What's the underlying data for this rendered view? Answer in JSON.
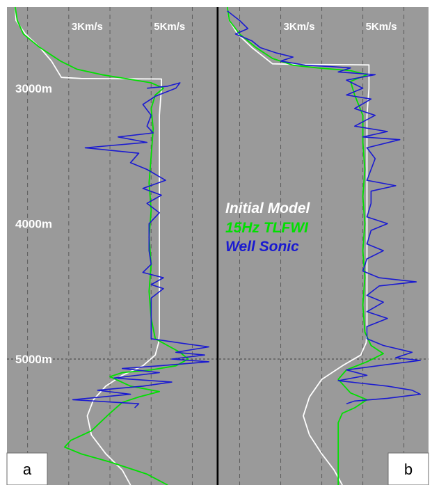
{
  "chart_data": {
    "type": "line",
    "x_axis": {
      "min": 1.5,
      "max": 6.6,
      "tick_labels": [
        "3Km/s",
        "5Km/s"
      ],
      "tick_values": [
        3,
        5
      ],
      "gridlines_km_s": [
        2,
        3,
        4,
        5,
        6
      ]
    },
    "y_axis": {
      "min": 2400,
      "max": 5930,
      "inverted": true,
      "tick_labels": [
        "3000m",
        "4000m",
        "5000m"
      ],
      "tick_values": [
        3000,
        4000,
        5000
      ]
    },
    "reference_depth_m": 5000,
    "legend": [
      {
        "label": "Initial Model",
        "color": "#ffffff"
      },
      {
        "label": "15Hz TLFWI",
        "color": "#00e000"
      },
      {
        "label": "Well Sonic",
        "color": "#1a1ad0"
      }
    ],
    "panels": [
      {
        "tag": "a",
        "series": [
          {
            "name": "Initial Model",
            "color": "#ffffff",
            "points": [
              [
                1.7,
                2400
              ],
              [
                1.72,
                2500
              ],
              [
                1.95,
                2600
              ],
              [
                2.3,
                2700
              ],
              [
                2.58,
                2800
              ],
              [
                2.82,
                2920
              ],
              [
                3.3,
                2928
              ],
              [
                4.1,
                2930
              ],
              [
                5.25,
                2932
              ],
              [
                5.25,
                3000
              ],
              [
                5.2,
                3200
              ],
              [
                5.2,
                3600
              ],
              [
                5.2,
                4000
              ],
              [
                5.2,
                4400
              ],
              [
                5.2,
                4800
              ],
              [
                5.18,
                4880
              ],
              [
                5.1,
                4970
              ],
              [
                4.8,
                5050
              ],
              [
                4.3,
                5120
              ],
              [
                3.9,
                5200
              ],
              [
                3.6,
                5300
              ],
              [
                3.45,
                5420
              ],
              [
                3.55,
                5560
              ],
              [
                3.9,
                5700
              ],
              [
                4.3,
                5820
              ],
              [
                4.5,
                5930
              ]
            ]
          },
          {
            "name": "15Hz TLFWI",
            "color": "#00e000",
            "points": [
              [
                1.7,
                2400
              ],
              [
                1.75,
                2500
              ],
              [
                1.9,
                2600
              ],
              [
                2.3,
                2700
              ],
              [
                2.8,
                2800
              ],
              [
                3.2,
                2860
              ],
              [
                3.8,
                2900
              ],
              [
                4.4,
                2930
              ],
              [
                5.0,
                2960
              ],
              [
                5.3,
                3000
              ],
              [
                5.1,
                3050
              ],
              [
                5.0,
                3150
              ],
              [
                5.05,
                3300
              ],
              [
                5.0,
                3500
              ],
              [
                4.95,
                3700
              ],
              [
                5.0,
                3900
              ],
              [
                4.95,
                4100
              ],
              [
                5.0,
                4300
              ],
              [
                4.95,
                4500
              ],
              [
                5.0,
                4700
              ],
              [
                5.1,
                4850
              ],
              [
                5.4,
                4900
              ],
              [
                5.7,
                4950
              ],
              [
                5.9,
                5000
              ],
              [
                5.6,
                5050
              ],
              [
                5.0,
                5080
              ],
              [
                4.3,
                5100
              ],
              [
                4.0,
                5130
              ],
              [
                4.5,
                5200
              ],
              [
                5.2,
                5240
              ],
              [
                4.7,
                5280
              ],
              [
                4.3,
                5320
              ],
              [
                4.0,
                5400
              ],
              [
                3.55,
                5530
              ],
              [
                3.05,
                5600
              ],
              [
                2.9,
                5650
              ],
              [
                3.3,
                5700
              ],
              [
                4.0,
                5760
              ],
              [
                4.9,
                5850
              ],
              [
                5.4,
                5930
              ]
            ]
          },
          {
            "name": "Well Sonic",
            "color": "#1a1ad0",
            "points": [
              [
                4.9,
                3000
              ],
              [
                5.4,
                2985
              ],
              [
                5.7,
                2960
              ],
              [
                5.6,
                3000
              ],
              [
                5.1,
                3060
              ],
              [
                4.8,
                3120
              ],
              [
                5.0,
                3200
              ],
              [
                4.9,
                3280
              ],
              [
                5.05,
                3330
              ],
              [
                4.2,
                3360
              ],
              [
                4.9,
                3400
              ],
              [
                3.4,
                3440
              ],
              [
                4.7,
                3480
              ],
              [
                4.5,
                3550
              ],
              [
                4.9,
                3600
              ],
              [
                5.35,
                3680
              ],
              [
                4.8,
                3740
              ],
              [
                5.25,
                3790
              ],
              [
                4.9,
                3850
              ],
              [
                5.2,
                3920
              ],
              [
                4.95,
                4000
              ],
              [
                4.95,
                4100
              ],
              [
                4.95,
                4200
              ],
              [
                5.0,
                4300
              ],
              [
                4.8,
                4360
              ],
              [
                5.3,
                4400
              ],
              [
                5.0,
                4450
              ],
              [
                5.3,
                4480
              ],
              [
                5.0,
                4550
              ],
              [
                5.0,
                4700
              ],
              [
                5.0,
                4850
              ],
              [
                5.9,
                4890
              ],
              [
                6.4,
                4910
              ],
              [
                5.6,
                4950
              ],
              [
                6.3,
                4970
              ],
              [
                5.5,
                5000
              ],
              [
                6.4,
                5020
              ],
              [
                5.2,
                5050
              ],
              [
                4.3,
                5070
              ],
              [
                5.2,
                5100
              ],
              [
                4.1,
                5140
              ],
              [
                5.5,
                5170
              ],
              [
                4.8,
                5200
              ],
              [
                3.7,
                5230
              ],
              [
                4.5,
                5260
              ],
              [
                3.1,
                5300
              ],
              [
                4.7,
                5330
              ],
              [
                4.6,
                5360
              ]
            ]
          }
        ]
      },
      {
        "tag": "b",
        "series": [
          {
            "name": "Initial Model",
            "color": "#ffffff",
            "points": [
              [
                1.7,
                2400
              ],
              [
                1.75,
                2500
              ],
              [
                1.95,
                2600
              ],
              [
                2.3,
                2700
              ],
              [
                2.8,
                2820
              ],
              [
                3.5,
                2825
              ],
              [
                4.4,
                2826
              ],
              [
                5.15,
                2828
              ],
              [
                5.15,
                3000
              ],
              [
                5.1,
                3200
              ],
              [
                5.1,
                3600
              ],
              [
                5.1,
                4000
              ],
              [
                5.1,
                4400
              ],
              [
                5.1,
                4800
              ],
              [
                5.08,
                4880
              ],
              [
                4.95,
                4970
              ],
              [
                4.5,
                5050
              ],
              [
                4.0,
                5150
              ],
              [
                3.7,
                5280
              ],
              [
                3.55,
                5420
              ],
              [
                3.7,
                5560
              ],
              [
                4.0,
                5700
              ],
              [
                4.3,
                5820
              ],
              [
                4.5,
                5930
              ]
            ]
          },
          {
            "name": "15Hz TLFWI",
            "color": "#00e000",
            "points": [
              [
                1.7,
                2400
              ],
              [
                1.75,
                2500
              ],
              [
                2.0,
                2600
              ],
              [
                2.4,
                2700
              ],
              [
                2.8,
                2780
              ],
              [
                3.3,
                2830
              ],
              [
                3.9,
                2850
              ],
              [
                4.7,
                2870
              ],
              [
                5.1,
                2900
              ],
              [
                4.7,
                2950
              ],
              [
                4.8,
                3050
              ],
              [
                5.0,
                3200
              ],
              [
                5.0,
                3400
              ],
              [
                5.05,
                3600
              ],
              [
                5.0,
                3800
              ],
              [
                5.05,
                4000
              ],
              [
                5.0,
                4200
              ],
              [
                5.05,
                4400
              ],
              [
                5.0,
                4600
              ],
              [
                5.05,
                4800
              ],
              [
                5.2,
                4900
              ],
              [
                5.5,
                4960
              ],
              [
                5.1,
                5020
              ],
              [
                4.6,
                5080
              ],
              [
                4.4,
                5150
              ],
              [
                4.7,
                5250
              ],
              [
                5.1,
                5300
              ],
              [
                4.8,
                5360
              ],
              [
                4.5,
                5400
              ],
              [
                4.4,
                5470
              ],
              [
                4.4,
                5600
              ],
              [
                4.4,
                5750
              ],
              [
                4.4,
                5930
              ]
            ]
          },
          {
            "name": "Well Sonic",
            "color": "#1a1ad0",
            "points": [
              [
                1.7,
                2430
              ],
              [
                2.0,
                2500
              ],
              [
                2.2,
                2560
              ],
              [
                1.9,
                2600
              ],
              [
                2.3,
                2650
              ],
              [
                2.5,
                2700
              ],
              [
                2.9,
                2740
              ],
              [
                3.3,
                2770
              ],
              [
                3.0,
                2800
              ],
              [
                3.6,
                2830
              ],
              [
                4.2,
                2840
              ],
              [
                4.7,
                2850
              ],
              [
                4.4,
                2880
              ],
              [
                5.3,
                2900
              ],
              [
                4.6,
                2940
              ],
              [
                5.0,
                3000
              ],
              [
                4.6,
                3050
              ],
              [
                5.2,
                3080
              ],
              [
                4.8,
                3150
              ],
              [
                5.3,
                3200
              ],
              [
                4.8,
                3280
              ],
              [
                5.6,
                3320
              ],
              [
                5.0,
                3360
              ],
              [
                5.9,
                3380
              ],
              [
                5.1,
                3440
              ],
              [
                5.3,
                3520
              ],
              [
                5.2,
                3600
              ],
              [
                5.1,
                3680
              ],
              [
                5.8,
                3720
              ],
              [
                5.2,
                3760
              ],
              [
                5.2,
                3850
              ],
              [
                5.1,
                3950
              ],
              [
                5.6,
                4000
              ],
              [
                5.2,
                4050
              ],
              [
                5.1,
                4150
              ],
              [
                5.5,
                4200
              ],
              [
                5.1,
                4260
              ],
              [
                5.0,
                4350
              ],
              [
                5.4,
                4400
              ],
              [
                6.3,
                4430
              ],
              [
                5.4,
                4460
              ],
              [
                5.1,
                4530
              ],
              [
                5.5,
                4580
              ],
              [
                5.1,
                4650
              ],
              [
                5.6,
                4700
              ],
              [
                5.1,
                4760
              ],
              [
                5.1,
                4850
              ],
              [
                5.5,
                4900
              ],
              [
                6.2,
                4950
              ],
              [
                5.8,
                4990
              ],
              [
                6.4,
                5010
              ],
              [
                5.6,
                5040
              ],
              [
                4.6,
                5080
              ],
              [
                5.1,
                5120
              ],
              [
                4.4,
                5160
              ],
              [
                5.6,
                5200
              ],
              [
                6.2,
                5230
              ],
              [
                6.4,
                5260
              ],
              [
                5.6,
                5290
              ],
              [
                4.8,
                5310
              ],
              [
                4.6,
                5330
              ]
            ]
          }
        ]
      }
    ]
  }
}
